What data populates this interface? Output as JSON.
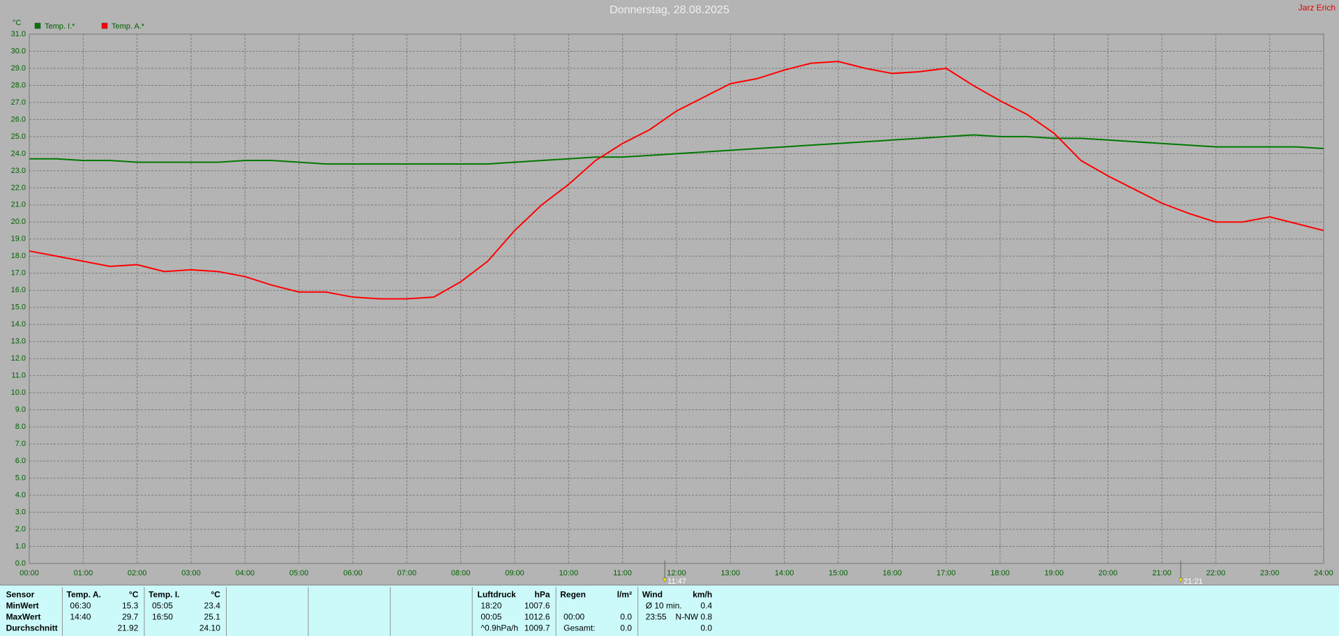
{
  "chart_data": {
    "type": "line",
    "title": "Donnerstag, 28.08.2025",
    "author": "Jarz Erich",
    "y_label": "°C",
    "x": [
      0,
      0.5,
      1,
      1.5,
      2,
      2.5,
      3,
      3.5,
      4,
      4.5,
      5,
      5.5,
      6,
      6.5,
      7,
      7.5,
      8,
      8.5,
      9,
      9.5,
      10,
      10.5,
      11,
      11.5,
      12,
      12.5,
      13,
      13.5,
      14,
      14.5,
      15,
      15.5,
      16,
      16.5,
      17,
      17.5,
      18,
      18.5,
      19,
      19.5,
      20,
      20.5,
      21,
      21.5,
      22,
      22.5,
      23,
      23.5,
      24
    ],
    "series": [
      {
        "name": "Temp. I.*",
        "color": "#007800",
        "values": [
          23.7,
          23.7,
          23.6,
          23.6,
          23.5,
          23.5,
          23.5,
          23.5,
          23.6,
          23.6,
          23.5,
          23.4,
          23.4,
          23.4,
          23.4,
          23.4,
          23.4,
          23.4,
          23.5,
          23.6,
          23.7,
          23.8,
          23.8,
          23.9,
          24.0,
          24.1,
          24.2,
          24.3,
          24.4,
          24.5,
          24.6,
          24.7,
          24.8,
          24.9,
          25.0,
          25.1,
          25.0,
          25.0,
          24.9,
          24.9,
          24.8,
          24.7,
          24.6,
          24.5,
          24.4,
          24.4,
          24.4,
          24.4,
          24.3
        ]
      },
      {
        "name": "Temp. A.*",
        "color": "#ff0000",
        "values": [
          18.3,
          18.0,
          17.7,
          17.4,
          17.5,
          17.1,
          17.2,
          17.1,
          16.8,
          16.3,
          15.9,
          15.9,
          15.6,
          15.5,
          15.5,
          15.6,
          16.5,
          17.7,
          19.5,
          21.0,
          22.2,
          23.6,
          24.6,
          25.4,
          26.5,
          27.3,
          28.1,
          28.4,
          28.9,
          29.3,
          29.4,
          29.0,
          28.7,
          28.8,
          29.0,
          28.0,
          27.1,
          26.3,
          25.2,
          23.6,
          22.7,
          21.9,
          21.1,
          20.5,
          20.0,
          20.0,
          20.3,
          19.9,
          19.5
        ]
      }
    ],
    "xlim": [
      0,
      24
    ],
    "ylim": [
      0,
      31
    ],
    "xticks": [
      {
        "value": 0,
        "label": "00:00"
      },
      {
        "value": 1,
        "label": "01:00"
      },
      {
        "value": 2,
        "label": "02:00"
      },
      {
        "value": 3,
        "label": "03:00"
      },
      {
        "value": 4,
        "label": "04:00"
      },
      {
        "value": 5,
        "label": "05:00"
      },
      {
        "value": 6,
        "label": "06:00"
      },
      {
        "value": 7,
        "label": "07:00"
      },
      {
        "value": 8,
        "label": "08:00"
      },
      {
        "value": 9,
        "label": "09:00"
      },
      {
        "value": 10,
        "label": "10:00"
      },
      {
        "value": 11,
        "label": "11:00"
      },
      {
        "value": 12,
        "label": "12:00"
      },
      {
        "value": 13,
        "label": "13:00"
      },
      {
        "value": 14,
        "label": "14:00"
      },
      {
        "value": 15,
        "label": "15:00"
      },
      {
        "value": 16,
        "label": "16:00"
      },
      {
        "value": 17,
        "label": "17:00"
      },
      {
        "value": 18,
        "label": "18:00"
      },
      {
        "value": 19,
        "label": "19:00"
      },
      {
        "value": 20,
        "label": "20:00"
      },
      {
        "value": 21,
        "label": "21:00"
      },
      {
        "value": 22,
        "label": "22:00"
      },
      {
        "value": 23,
        "label": "23:00"
      },
      {
        "value": 24,
        "label": "24:00"
      }
    ],
    "yticks": [
      {
        "value": 0,
        "label": "0.0"
      },
      {
        "value": 1,
        "label": "1.0"
      },
      {
        "value": 2,
        "label": "2.0"
      },
      {
        "value": 3,
        "label": "3.0"
      },
      {
        "value": 4,
        "label": "4.0"
      },
      {
        "value": 5,
        "label": "5.0"
      },
      {
        "value": 6,
        "label": "6.0"
      },
      {
        "value": 7,
        "label": "7.0"
      },
      {
        "value": 8,
        "label": "8.0"
      },
      {
        "value": 9,
        "label": "9.0"
      },
      {
        "value": 10,
        "label": "10.0"
      },
      {
        "value": 11,
        "label": "11.0"
      },
      {
        "value": 12,
        "label": "12.0"
      },
      {
        "value": 13,
        "label": "13.0"
      },
      {
        "value": 14,
        "label": "14.0"
      },
      {
        "value": 15,
        "label": "15.0"
      },
      {
        "value": 16,
        "label": "16.0"
      },
      {
        "value": 17,
        "label": "17.0"
      },
      {
        "value": 18,
        "label": "18.0"
      },
      {
        "value": 19,
        "label": "19.0"
      },
      {
        "value": 20,
        "label": "20.0"
      },
      {
        "value": 21,
        "label": "21.0"
      },
      {
        "value": 22,
        "label": "22.0"
      },
      {
        "value": 23,
        "label": "23.0"
      },
      {
        "value": 24,
        "label": "24.0"
      },
      {
        "value": 25,
        "label": "25.0"
      },
      {
        "value": 26,
        "label": "26.0"
      },
      {
        "value": 27,
        "label": "27.0"
      },
      {
        "value": 28,
        "label": "28.0"
      },
      {
        "value": 29,
        "label": "29.0"
      },
      {
        "value": 30,
        "label": "30.0"
      },
      {
        "value": 31,
        "label": "31.0"
      }
    ],
    "grid": true,
    "markers": [
      {
        "x": 11.7833,
        "label": "11:47"
      },
      {
        "x": 21.35,
        "label": "21:21"
      }
    ]
  },
  "stats": {
    "sensor": {
      "header": "Sensor",
      "rows": [
        "MinWert",
        "MaxWert",
        "Durchschnitt"
      ]
    },
    "groups": [
      {
        "header": [
          "Temp. A.",
          "°C"
        ],
        "rows": [
          [
            "06:30",
            "15.3"
          ],
          [
            "14:40",
            "29.7"
          ],
          [
            null,
            "21.92"
          ]
        ]
      },
      {
        "header": [
          "Temp. I.",
          "°C"
        ],
        "rows": [
          [
            "05:05",
            "23.4"
          ],
          [
            "16:50",
            "25.1"
          ],
          [
            null,
            "24.10"
          ]
        ]
      },
      {
        "header": [
          "Luftdruck",
          "hPa"
        ],
        "rows": [
          [
            "18:20",
            "1007.6"
          ],
          [
            "00:05",
            "1012.6"
          ],
          [
            "^0.9hPa/h",
            "1009.7"
          ]
        ]
      },
      {
        "header": [
          "Regen",
          "l/m²"
        ],
        "rows": [
          [
            null,
            null
          ],
          [
            "00:00",
            "0.0"
          ],
          [
            "Gesamt:",
            "0.0"
          ]
        ]
      },
      {
        "header": [
          "Wind",
          "km/h"
        ],
        "rows": [
          [
            "Ø 10 min.",
            "0.4"
          ],
          [
            "23:55",
            "N-NW 0.8"
          ],
          [
            null,
            "0.0"
          ]
        ]
      }
    ]
  }
}
